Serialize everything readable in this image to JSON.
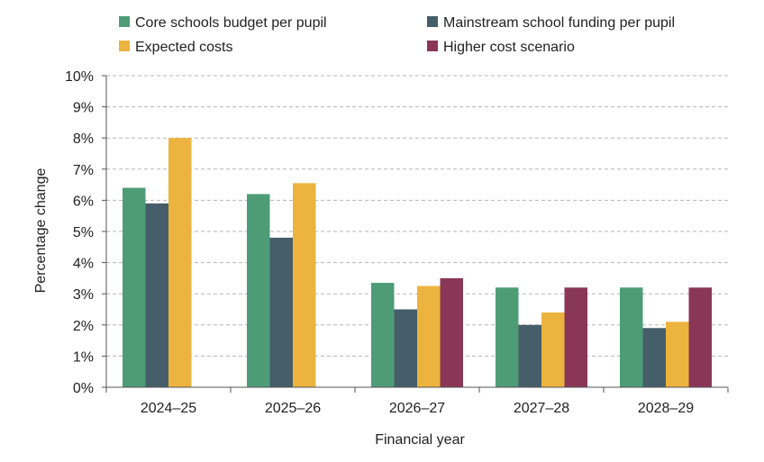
{
  "chart_data": {
    "type": "bar",
    "xlabel": "Financial year",
    "ylabel": "Percentage change",
    "ylim": [
      0,
      10
    ],
    "yticks": [
      "0%",
      "1%",
      "2%",
      "3%",
      "4%",
      "5%",
      "6%",
      "7%",
      "8%",
      "9%",
      "10%"
    ],
    "grid": true,
    "legend_position": "top",
    "categories": [
      "2024–25",
      "2025–26",
      "2026–27",
      "2027–28",
      "2028–29"
    ],
    "series": [
      {
        "name": "Core schools budget per pupil",
        "color": "#4e9c76",
        "values": [
          6.4,
          6.2,
          3.35,
          3.2,
          3.2
        ]
      },
      {
        "name": "Mainstream school funding per pupil",
        "color": "#455e69",
        "values": [
          5.9,
          4.8,
          2.5,
          2.0,
          1.9
        ]
      },
      {
        "name": "Expected costs",
        "color": "#ecb43e",
        "values": [
          8.0,
          6.55,
          3.25,
          2.4,
          2.1
        ]
      },
      {
        "name": "Higher cost scenario",
        "color": "#8a3757",
        "values": [
          null,
          null,
          3.5,
          3.2,
          3.2
        ]
      }
    ]
  }
}
